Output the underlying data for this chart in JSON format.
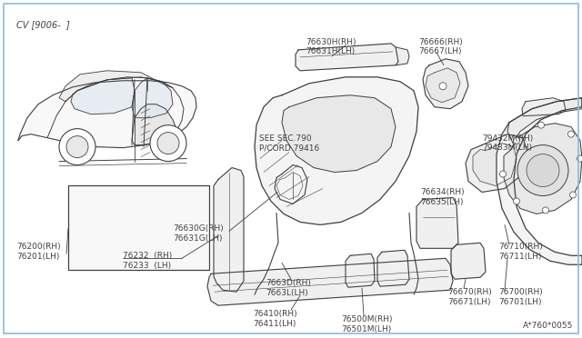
{
  "background_color": "#ffffff",
  "border_color": "#88bbdd",
  "diagram_id": "A*760*0055",
  "car_label": "CV [9006-  ]",
  "see_sec": "SEE SEC.790\nP/CORD 79416",
  "lc": "#404040",
  "fs": 6.5
}
